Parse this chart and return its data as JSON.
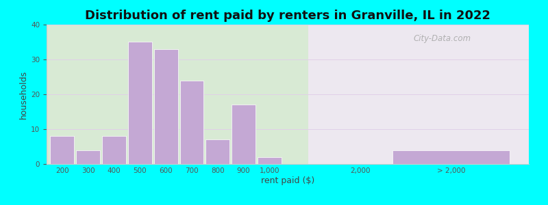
{
  "title": "Distribution of rent paid by renters in Granville, IL in 2022",
  "xlabel": "rent paid ($)",
  "ylabel": "households",
  "bar_color": "#c4a8d4",
  "background_outer": "#00ffff",
  "background_left": "#d8ead4",
  "background_right": "#ede8f0",
  "ylim": [
    0,
    40
  ],
  "yticks": [
    0,
    10,
    20,
    30,
    40
  ],
  "categories": [
    "200",
    "300",
    "400",
    "500",
    "600",
    "700",
    "800",
    "900",
    "1,000",
    "2,000",
    "> 2,000"
  ],
  "values": [
    8,
    4,
    8,
    35,
    33,
    24,
    7,
    17,
    2,
    0,
    4
  ],
  "watermark_text": "City-Data.com",
  "title_fontsize": 13,
  "axis_label_fontsize": 9,
  "tick_fontsize": 7.5
}
